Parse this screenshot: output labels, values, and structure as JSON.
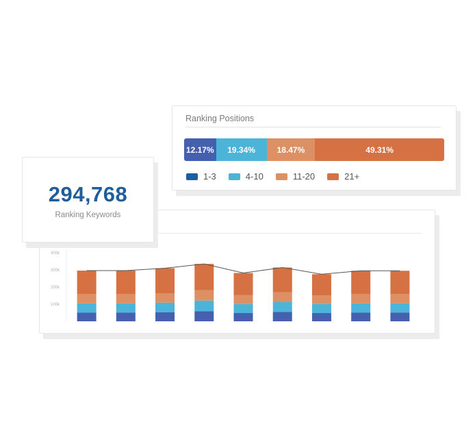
{
  "ranking_positions": {
    "title": "Ranking Positions",
    "segments": [
      {
        "label": "1-3",
        "percent_label": "12.17%",
        "value": 12.17,
        "color": "#4460ae"
      },
      {
        "label": "4-10",
        "percent_label": "19.34%",
        "value": 19.34,
        "color": "#4cb3d9"
      },
      {
        "label": "11-20",
        "percent_label": "18.47%",
        "value": 18.47,
        "color": "#dc9063"
      },
      {
        "label": "21+",
        "percent_label": "49.31%",
        "value": 49.31,
        "color": "#d57143"
      }
    ],
    "legend_swatch_colors": [
      "#1a5fa3",
      "#4cb3d9",
      "#dc9063",
      "#d57143"
    ]
  },
  "ranking_keywords": {
    "value": "294,768",
    "label": "Ranking Keywords"
  },
  "chart_data": {
    "type": "bar",
    "stacked": true,
    "y_tick_labels": [
      "400k",
      "300k",
      "200k",
      "100k"
    ],
    "ylim": [
      0,
      400000
    ],
    "categories": [
      "",
      "",
      "",
      "",
      "",
      "",
      "",
      "",
      ""
    ],
    "series": [
      {
        "color": "#4460ae",
        "values": [
          50000,
          50000,
          52000,
          58000,
          48000,
          54000,
          48000,
          50000,
          50000
        ]
      },
      {
        "color": "#4cb3d9",
        "values": [
          55000,
          55000,
          57000,
          63000,
          53000,
          58000,
          53000,
          55000,
          55000
        ]
      },
      {
        "color": "#dc9063",
        "values": [
          55000,
          55000,
          55000,
          60000,
          53000,
          57000,
          51000,
          55000,
          55000
        ]
      },
      {
        "color": "#d57143",
        "values": [
          136000,
          136000,
          146000,
          154000,
          128000,
          145000,
          123000,
          135000,
          135000
        ]
      }
    ],
    "line": {
      "color": "#555555",
      "values": [
        296000,
        296000,
        310000,
        335000,
        282000,
        314000,
        275000,
        295000,
        295000
      ]
    },
    "grid": false,
    "legend": "none"
  }
}
